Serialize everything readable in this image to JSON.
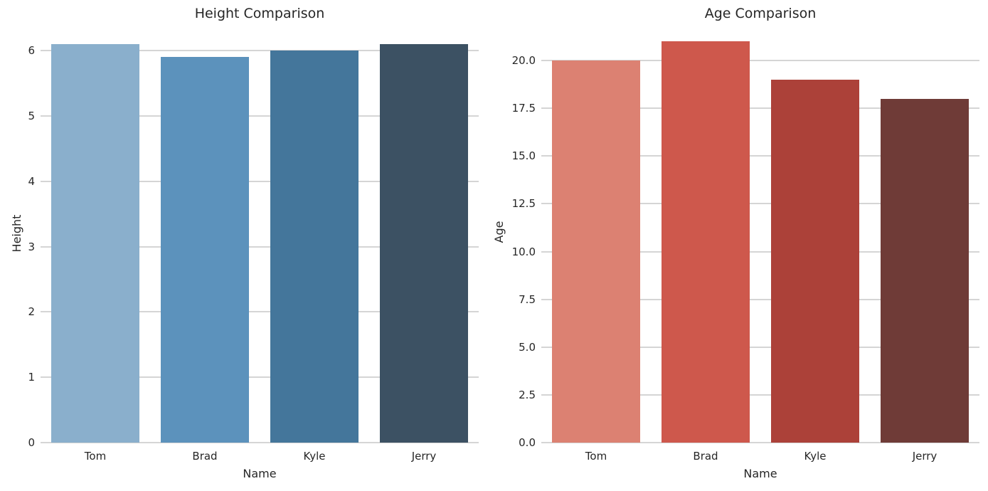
{
  "figure": {
    "background": "#ffffff",
    "text_color": "#262626",
    "grid_color": "#d5d5d5"
  },
  "chart_data": [
    {
      "type": "bar",
      "title": "Height Comparison",
      "xlabel": "Name",
      "ylabel": "Height",
      "categories": [
        "Tom",
        "Brad",
        "Kyle",
        "Jerry"
      ],
      "values": [
        6.1,
        5.9,
        6.0,
        6.1
      ],
      "bar_colors": [
        "#8AAFCC",
        "#5C92BC",
        "#44769B",
        "#3C5163"
      ],
      "ylim": [
        0,
        6.405
      ],
      "ytick_values": [
        0,
        1,
        2,
        3,
        4,
        5,
        6
      ],
      "ytick_labels": [
        "0",
        "1",
        "2",
        "3",
        "4",
        "5",
        "6"
      ],
      "grid": true,
      "legend_position": "none",
      "bar_width_frac": 0.8
    },
    {
      "type": "bar",
      "title": "Age Comparison",
      "xlabel": "Name",
      "ylabel": "Age",
      "categories": [
        "Tom",
        "Brad",
        "Kyle",
        "Jerry"
      ],
      "values": [
        20,
        21,
        19,
        18
      ],
      "bar_colors": [
        "#DC8172",
        "#CE584C",
        "#AC4139",
        "#6F3B37"
      ],
      "ylim": [
        0,
        22.05
      ],
      "ytick_values": [
        0,
        2.5,
        5,
        7.5,
        10,
        12.5,
        15,
        17.5,
        20
      ],
      "ytick_labels": [
        "0.0",
        "2.5",
        "5.0",
        "7.5",
        "10.0",
        "12.5",
        "15.0",
        "17.5",
        "20.0"
      ],
      "grid": true,
      "legend_position": "none",
      "bar_width_frac": 0.8
    }
  ]
}
